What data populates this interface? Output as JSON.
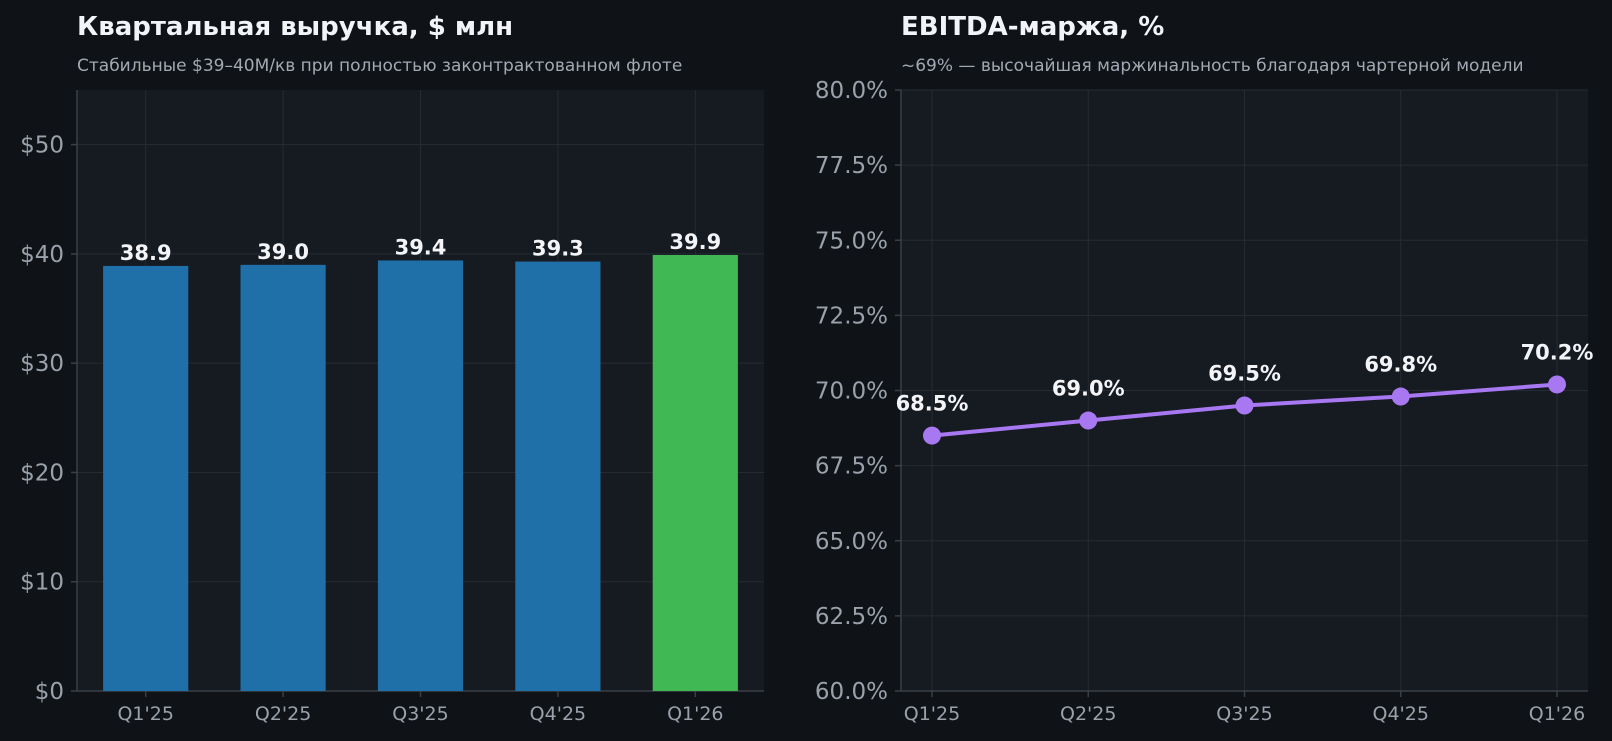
{
  "chart_data": [
    {
      "type": "bar",
      "title": "Квартальная выручка, $ млн",
      "subtitle": "Стабильные $39–40M/кв при полностью законтрактованном флоте",
      "categories": [
        "Q1'25",
        "Q2'25",
        "Q3'25",
        "Q4'25",
        "Q1'26"
      ],
      "values": [
        38.9,
        39.0,
        39.4,
        39.3,
        39.9
      ],
      "data_labels": [
        "38.9",
        "39.0",
        "39.4",
        "39.3",
        "39.9"
      ],
      "bar_colors": [
        "#1f6fa8",
        "#1f6fa8",
        "#1f6fa8",
        "#1f6fa8",
        "#40b854"
      ],
      "ylim": [
        0,
        55
      ],
      "yticks": [
        0,
        10,
        20,
        30,
        40,
        50
      ],
      "ytick_labels": [
        "$0",
        "$10",
        "$20",
        "$30",
        "$40",
        "$50"
      ],
      "grid": true
    },
    {
      "type": "line",
      "title": "EBITDA-маржа, %",
      "subtitle": "~69% — высочайшая маржинальность благодаря чартерной модели",
      "categories": [
        "Q1'25",
        "Q2'25",
        "Q3'25",
        "Q4'25",
        "Q1'26"
      ],
      "values": [
        68.5,
        69.0,
        69.5,
        69.8,
        70.2
      ],
      "data_labels": [
        "68.5%",
        "69.0%",
        "69.5%",
        "69.8%",
        "70.2%"
      ],
      "line_color": "#a878f2",
      "ylim": [
        60,
        80
      ],
      "yticks": [
        60,
        62.5,
        65,
        67.5,
        70,
        72.5,
        75,
        77.5,
        80
      ],
      "ytick_labels": [
        "60.0%",
        "62.5%",
        "65.0%",
        "67.5%",
        "70.0%",
        "72.5%",
        "75.0%",
        "77.5%",
        "80.0%"
      ],
      "grid": true
    }
  ],
  "colors": {
    "page_bg": "#0f1317",
    "plot_bg": "#161a21",
    "grid": "#262b33",
    "axis": "#3a3f47",
    "title": "#f2f4f7",
    "subtitle": "#a3a9b3",
    "tick": "#9aa1ab"
  }
}
